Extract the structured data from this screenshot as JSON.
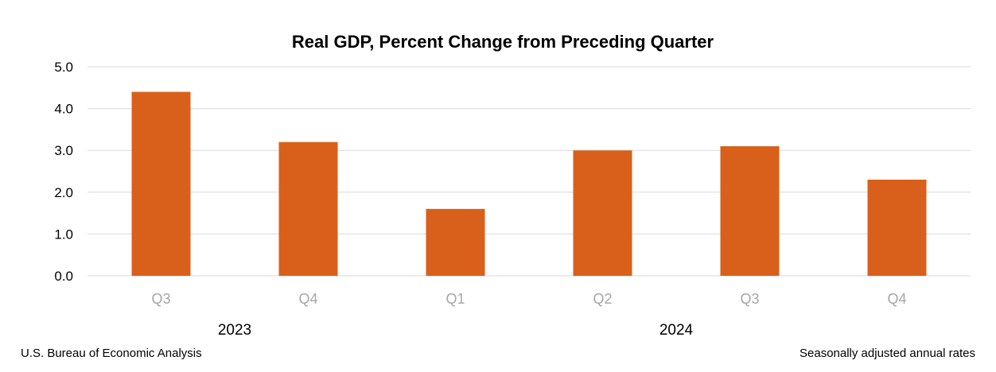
{
  "chart_data": {
    "type": "bar",
    "title": "Real GDP, Percent Change from Preceding Quarter",
    "categories": [
      "Q3",
      "Q4",
      "Q1",
      "Q2",
      "Q3",
      "Q4"
    ],
    "groups": [
      {
        "label": "2023",
        "categories": [
          "Q3",
          "Q4"
        ]
      },
      {
        "label": "2024",
        "categories": [
          "Q1",
          "Q2",
          "Q3",
          "Q4"
        ]
      }
    ],
    "values": [
      4.4,
      3.2,
      1.6,
      3.0,
      3.1,
      2.3
    ],
    "yticks": [
      "0.0",
      "1.0",
      "2.0",
      "3.0",
      "4.0",
      "5.0"
    ],
    "ylim": [
      0,
      5
    ],
    "xlabel": "",
    "ylabel": "",
    "grid": true,
    "bar_color": "#d9601a",
    "source_note": "U.S. Bureau of Economic Analysis",
    "rate_note": "Seasonally adjusted annual rates"
  }
}
